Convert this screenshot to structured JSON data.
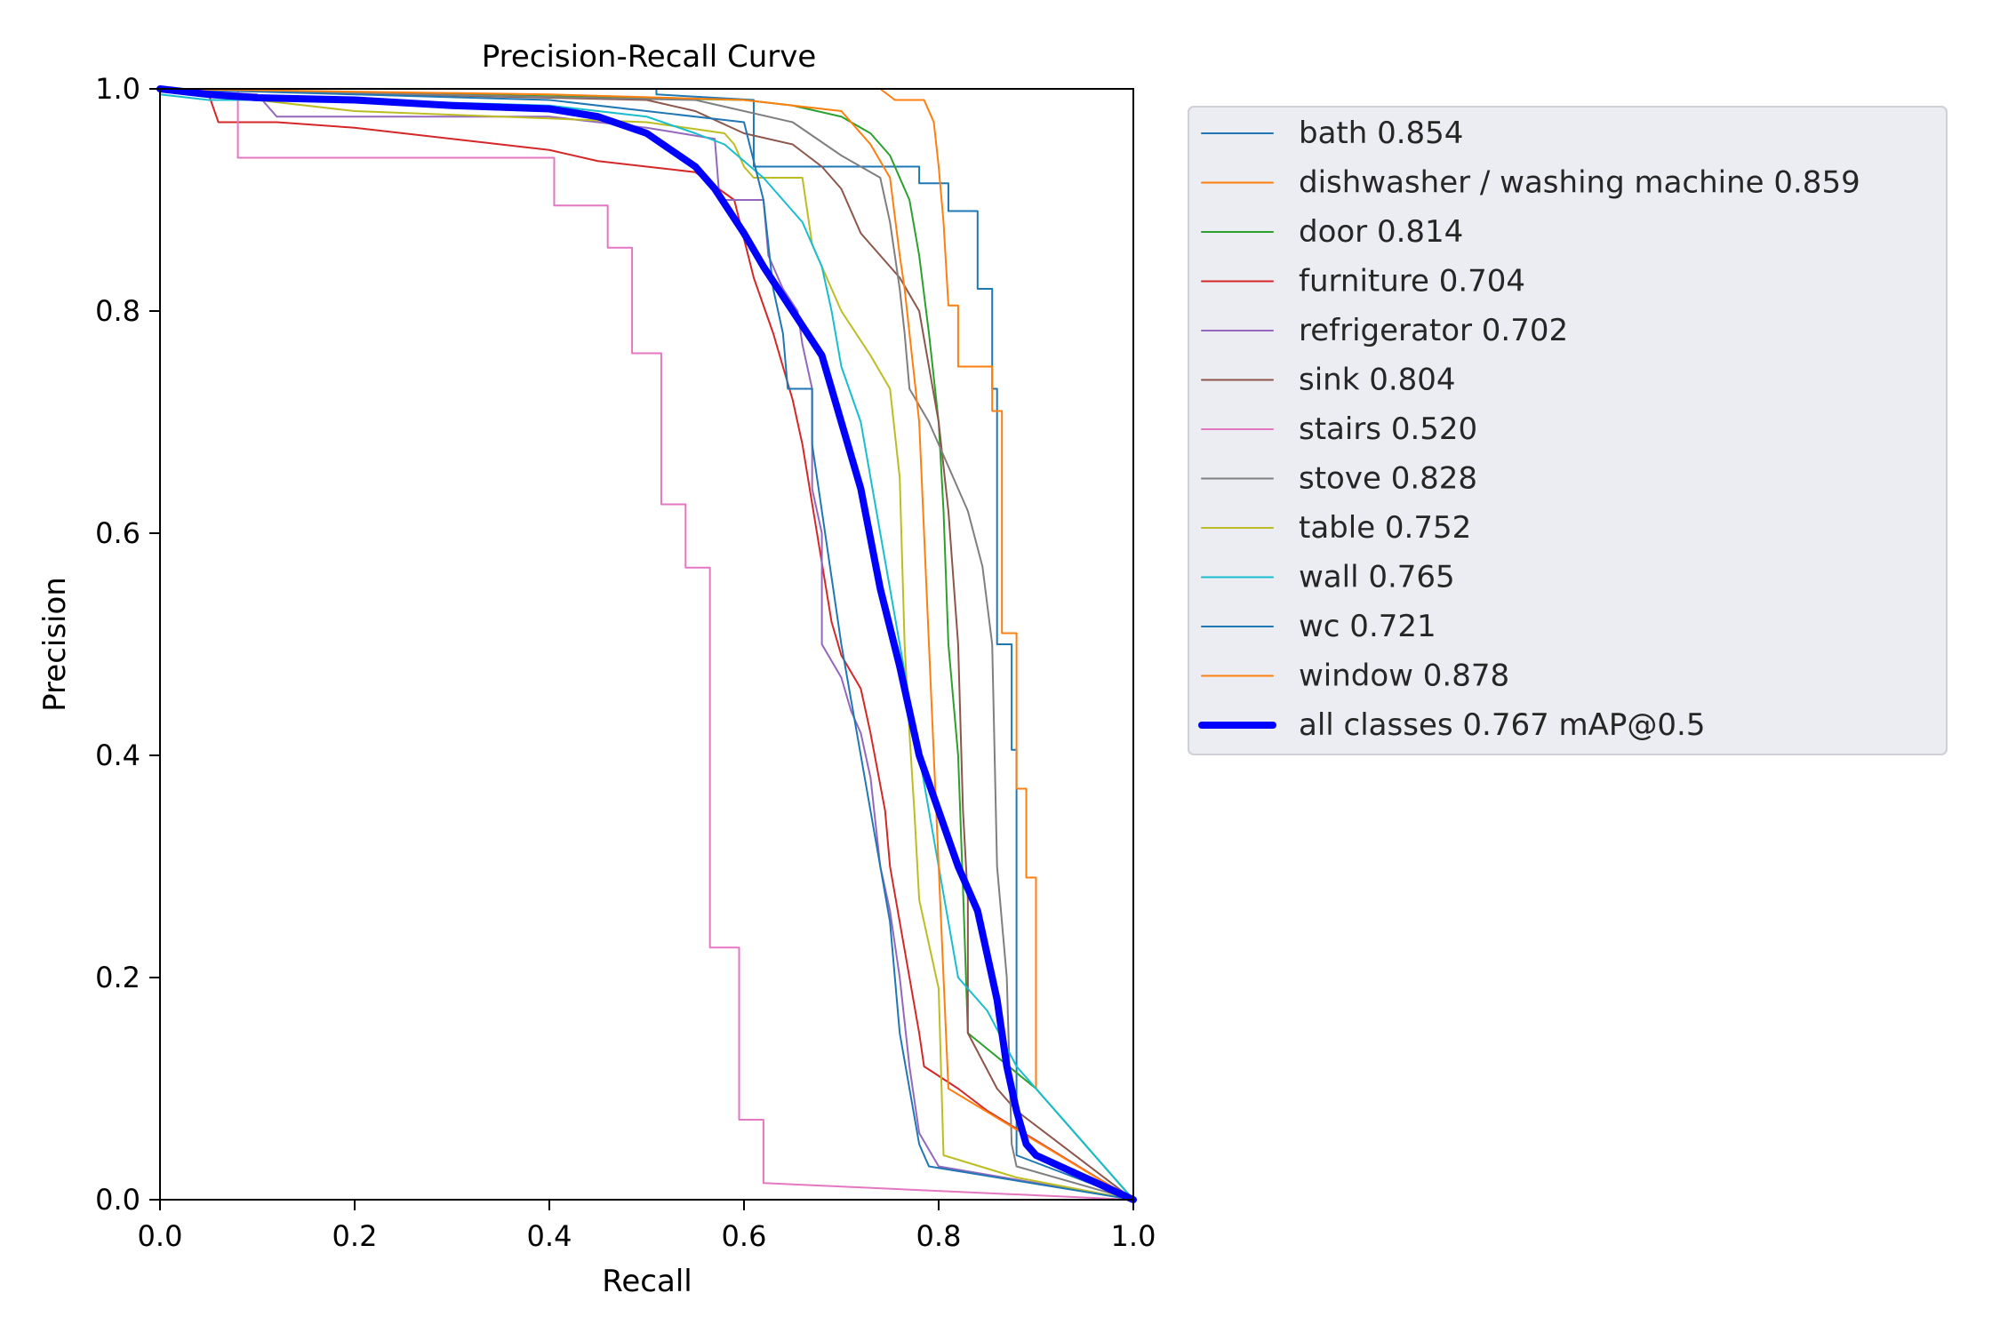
{
  "chart_data": {
    "type": "line",
    "title": "Precision-Recall Curve",
    "xlabel": "Recall",
    "ylabel": "Precision",
    "xlim": [
      0,
      1
    ],
    "ylim": [
      0,
      1
    ],
    "xticks": [
      "0.0",
      "0.2",
      "0.4",
      "0.6",
      "0.8",
      "1.0"
    ],
    "yticks": [
      "0.0",
      "0.2",
      "0.4",
      "0.6",
      "0.8",
      "1.0"
    ],
    "grid": false,
    "legend_position": "outside-right",
    "series": [
      {
        "name": "bath",
        "label": "bath 0.854",
        "color": "#1f77b4",
        "points": [
          [
            0,
            1
          ],
          [
            0.51,
            1
          ],
          [
            0.51,
            0.995
          ],
          [
            0.61,
            0.99
          ],
          [
            0.61,
            0.93
          ],
          [
            0.78,
            0.93
          ],
          [
            0.78,
            0.915
          ],
          [
            0.81,
            0.915
          ],
          [
            0.81,
            0.89
          ],
          [
            0.84,
            0.89
          ],
          [
            0.84,
            0.82
          ],
          [
            0.855,
            0.82
          ],
          [
            0.855,
            0.73
          ],
          [
            0.86,
            0.73
          ],
          [
            0.86,
            0.5
          ],
          [
            0.875,
            0.5
          ],
          [
            0.875,
            0.405
          ],
          [
            0.88,
            0.405
          ],
          [
            0.88,
            0.04
          ],
          [
            1,
            0
          ]
        ]
      },
      {
        "name": "dishwasher / washing machine",
        "label": "dishwasher / washing machine 0.859",
        "color": "#ff7f0e",
        "points": [
          [
            0,
            1
          ],
          [
            0.74,
            1
          ],
          [
            0.755,
            0.99
          ],
          [
            0.785,
            0.99
          ],
          [
            0.795,
            0.97
          ],
          [
            0.8,
            0.93
          ],
          [
            0.805,
            0.88
          ],
          [
            0.81,
            0.805
          ],
          [
            0.82,
            0.805
          ],
          [
            0.82,
            0.75
          ],
          [
            0.855,
            0.75
          ],
          [
            0.855,
            0.71
          ],
          [
            0.865,
            0.71
          ],
          [
            0.865,
            0.51
          ],
          [
            0.88,
            0.51
          ],
          [
            0.88,
            0.37
          ],
          [
            0.89,
            0.37
          ],
          [
            0.89,
            0.29
          ],
          [
            0.9,
            0.29
          ],
          [
            0.9,
            0.1
          ],
          [
            1,
            0
          ]
        ]
      },
      {
        "name": "door",
        "label": "door 0.814",
        "color": "#2ca02c",
        "points": [
          [
            0,
            1
          ],
          [
            0.3,
            0.995
          ],
          [
            0.6,
            0.99
          ],
          [
            0.65,
            0.985
          ],
          [
            0.7,
            0.975
          ],
          [
            0.73,
            0.96
          ],
          [
            0.75,
            0.94
          ],
          [
            0.77,
            0.9
          ],
          [
            0.78,
            0.85
          ],
          [
            0.79,
            0.78
          ],
          [
            0.8,
            0.7
          ],
          [
            0.805,
            0.62
          ],
          [
            0.81,
            0.5
          ],
          [
            0.82,
            0.4
          ],
          [
            0.825,
            0.28
          ],
          [
            0.83,
            0.15
          ],
          [
            0.9,
            0.1
          ],
          [
            1,
            0
          ]
        ]
      },
      {
        "name": "furniture",
        "label": "furniture 0.704",
        "color": "#d62728",
        "points": [
          [
            0,
            1
          ],
          [
            0.05,
            0.995
          ],
          [
            0.06,
            0.97
          ],
          [
            0.12,
            0.97
          ],
          [
            0.2,
            0.965
          ],
          [
            0.3,
            0.955
          ],
          [
            0.4,
            0.945
          ],
          [
            0.45,
            0.935
          ],
          [
            0.5,
            0.93
          ],
          [
            0.55,
            0.925
          ],
          [
            0.59,
            0.9
          ],
          [
            0.61,
            0.83
          ],
          [
            0.63,
            0.78
          ],
          [
            0.65,
            0.72
          ],
          [
            0.66,
            0.68
          ],
          [
            0.675,
            0.6
          ],
          [
            0.69,
            0.52
          ],
          [
            0.7,
            0.49
          ],
          [
            0.72,
            0.46
          ],
          [
            0.73,
            0.42
          ],
          [
            0.745,
            0.35
          ],
          [
            0.75,
            0.3
          ],
          [
            0.76,
            0.25
          ],
          [
            0.77,
            0.2
          ],
          [
            0.78,
            0.15
          ],
          [
            0.785,
            0.12
          ],
          [
            0.82,
            0.1
          ],
          [
            0.85,
            0.08
          ],
          [
            1,
            0
          ]
        ]
      },
      {
        "name": "refrigerator",
        "label": "refrigerator 0.702",
        "color": "#9467bd",
        "points": [
          [
            0,
            1
          ],
          [
            0.1,
            0.995
          ],
          [
            0.12,
            0.975
          ],
          [
            0.2,
            0.975
          ],
          [
            0.3,
            0.975
          ],
          [
            0.4,
            0.975
          ],
          [
            0.5,
            0.965
          ],
          [
            0.57,
            0.955
          ],
          [
            0.575,
            0.9
          ],
          [
            0.62,
            0.9
          ],
          [
            0.625,
            0.85
          ],
          [
            0.64,
            0.82
          ],
          [
            0.655,
            0.8
          ],
          [
            0.66,
            0.77
          ],
          [
            0.67,
            0.73
          ],
          [
            0.67,
            0.64
          ],
          [
            0.68,
            0.6
          ],
          [
            0.68,
            0.5
          ],
          [
            0.7,
            0.47
          ],
          [
            0.71,
            0.44
          ],
          [
            0.72,
            0.42
          ],
          [
            0.73,
            0.38
          ],
          [
            0.74,
            0.3
          ],
          [
            0.75,
            0.26
          ],
          [
            0.76,
            0.2
          ],
          [
            0.77,
            0.12
          ],
          [
            0.78,
            0.06
          ],
          [
            0.8,
            0.03
          ],
          [
            1,
            0
          ]
        ]
      },
      {
        "name": "sink",
        "label": "sink 0.804",
        "color": "#8c564b",
        "points": [
          [
            0,
            1
          ],
          [
            0.5,
            0.99
          ],
          [
            0.55,
            0.98
          ],
          [
            0.6,
            0.96
          ],
          [
            0.65,
            0.95
          ],
          [
            0.68,
            0.93
          ],
          [
            0.7,
            0.91
          ],
          [
            0.72,
            0.87
          ],
          [
            0.74,
            0.85
          ],
          [
            0.76,
            0.83
          ],
          [
            0.78,
            0.8
          ],
          [
            0.79,
            0.75
          ],
          [
            0.8,
            0.7
          ],
          [
            0.81,
            0.62
          ],
          [
            0.82,
            0.5
          ],
          [
            0.825,
            0.35
          ],
          [
            0.83,
            0.27
          ],
          [
            0.83,
            0.15
          ],
          [
            0.86,
            0.1
          ],
          [
            0.88,
            0.08
          ],
          [
            1,
            0
          ]
        ]
      },
      {
        "name": "stairs",
        "label": "stairs 0.520",
        "color": "#e377c2",
        "points": [
          [
            0,
            1
          ],
          [
            0.08,
            1
          ],
          [
            0.08,
            0.938
          ],
          [
            0.405,
            0.938
          ],
          [
            0.405,
            0.895
          ],
          [
            0.46,
            0.895
          ],
          [
            0.46,
            0.857
          ],
          [
            0.485,
            0.857
          ],
          [
            0.485,
            0.762
          ],
          [
            0.515,
            0.762
          ],
          [
            0.515,
            0.626
          ],
          [
            0.54,
            0.626
          ],
          [
            0.54,
            0.569
          ],
          [
            0.565,
            0.569
          ],
          [
            0.565,
            0.227
          ],
          [
            0.595,
            0.227
          ],
          [
            0.595,
            0.072
          ],
          [
            0.62,
            0.072
          ],
          [
            0.62,
            0.015
          ],
          [
            1,
            0
          ]
        ]
      },
      {
        "name": "stove",
        "label": "stove 0.828",
        "color": "#7f7f7f",
        "points": [
          [
            0,
            1
          ],
          [
            0.55,
            0.99
          ],
          [
            0.65,
            0.97
          ],
          [
            0.7,
            0.94
          ],
          [
            0.74,
            0.92
          ],
          [
            0.75,
            0.88
          ],
          [
            0.76,
            0.82
          ],
          [
            0.765,
            0.78
          ],
          [
            0.77,
            0.73
          ],
          [
            0.79,
            0.7
          ],
          [
            0.8,
            0.68
          ],
          [
            0.81,
            0.66
          ],
          [
            0.83,
            0.62
          ],
          [
            0.845,
            0.57
          ],
          [
            0.855,
            0.5
          ],
          [
            0.86,
            0.3
          ],
          [
            0.87,
            0.2
          ],
          [
            0.875,
            0.05
          ],
          [
            0.88,
            0.03
          ],
          [
            1,
            0
          ]
        ]
      },
      {
        "name": "table",
        "label": "table 0.752",
        "color": "#bcbd22",
        "points": [
          [
            0,
            1
          ],
          [
            0.2,
            0.98
          ],
          [
            0.5,
            0.97
          ],
          [
            0.58,
            0.96
          ],
          [
            0.59,
            0.95
          ],
          [
            0.6,
            0.93
          ],
          [
            0.61,
            0.92
          ],
          [
            0.66,
            0.92
          ],
          [
            0.67,
            0.86
          ],
          [
            0.7,
            0.8
          ],
          [
            0.73,
            0.76
          ],
          [
            0.75,
            0.73
          ],
          [
            0.76,
            0.65
          ],
          [
            0.765,
            0.5
          ],
          [
            0.77,
            0.42
          ],
          [
            0.775,
            0.35
          ],
          [
            0.78,
            0.27
          ],
          [
            0.8,
            0.19
          ],
          [
            0.805,
            0.04
          ],
          [
            0.88,
            0.02
          ],
          [
            1,
            0
          ]
        ]
      },
      {
        "name": "wall",
        "label": "wall 0.765",
        "color": "#17becf",
        "points": [
          [
            0,
            0.995
          ],
          [
            0.05,
            0.99
          ],
          [
            0.2,
            0.99
          ],
          [
            0.4,
            0.985
          ],
          [
            0.5,
            0.975
          ],
          [
            0.55,
            0.96
          ],
          [
            0.58,
            0.95
          ],
          [
            0.6,
            0.935
          ],
          [
            0.62,
            0.92
          ],
          [
            0.64,
            0.9
          ],
          [
            0.66,
            0.88
          ],
          [
            0.68,
            0.84
          ],
          [
            0.69,
            0.8
          ],
          [
            0.7,
            0.75
          ],
          [
            0.72,
            0.7
          ],
          [
            0.73,
            0.65
          ],
          [
            0.74,
            0.6
          ],
          [
            0.75,
            0.55
          ],
          [
            0.76,
            0.5
          ],
          [
            0.77,
            0.45
          ],
          [
            0.78,
            0.4
          ],
          [
            0.79,
            0.35
          ],
          [
            0.8,
            0.3
          ],
          [
            0.81,
            0.25
          ],
          [
            0.82,
            0.2
          ],
          [
            0.85,
            0.17
          ],
          [
            0.88,
            0.12
          ],
          [
            1,
            0
          ]
        ]
      },
      {
        "name": "wc",
        "label": "wc 0.721",
        "color": "#1f77b4",
        "points": [
          [
            0,
            1
          ],
          [
            0.4,
            0.99
          ],
          [
            0.6,
            0.97
          ],
          [
            0.62,
            0.9
          ],
          [
            0.63,
            0.82
          ],
          [
            0.64,
            0.78
          ],
          [
            0.645,
            0.73
          ],
          [
            0.67,
            0.73
          ],
          [
            0.67,
            0.68
          ],
          [
            0.7,
            0.5
          ],
          [
            0.72,
            0.4
          ],
          [
            0.73,
            0.35
          ],
          [
            0.74,
            0.3
          ],
          [
            0.75,
            0.25
          ],
          [
            0.76,
            0.15
          ],
          [
            0.77,
            0.1
          ],
          [
            0.78,
            0.05
          ],
          [
            0.79,
            0.03
          ],
          [
            1,
            0
          ]
        ]
      },
      {
        "name": "window",
        "label": "window 0.878",
        "color": "#ff7f0e",
        "points": [
          [
            0,
            1
          ],
          [
            0.4,
            0.995
          ],
          [
            0.6,
            0.99
          ],
          [
            0.7,
            0.98
          ],
          [
            0.73,
            0.95
          ],
          [
            0.75,
            0.92
          ],
          [
            0.76,
            0.85
          ],
          [
            0.765,
            0.82
          ],
          [
            0.77,
            0.78
          ],
          [
            0.78,
            0.7
          ],
          [
            0.785,
            0.6
          ],
          [
            0.79,
            0.5
          ],
          [
            0.795,
            0.4
          ],
          [
            0.8,
            0.3
          ],
          [
            0.805,
            0.2
          ],
          [
            0.81,
            0.1
          ],
          [
            1,
            0
          ]
        ]
      },
      {
        "name": "all classes",
        "label": "all classes 0.767 mAP@0.5",
        "color": "#0000ff",
        "bold": true,
        "points": [
          [
            0,
            1
          ],
          [
            0.05,
            0.995
          ],
          [
            0.1,
            0.992
          ],
          [
            0.2,
            0.99
          ],
          [
            0.3,
            0.985
          ],
          [
            0.4,
            0.982
          ],
          [
            0.45,
            0.975
          ],
          [
            0.5,
            0.96
          ],
          [
            0.55,
            0.93
          ],
          [
            0.57,
            0.91
          ],
          [
            0.6,
            0.87
          ],
          [
            0.62,
            0.84
          ],
          [
            0.65,
            0.8
          ],
          [
            0.68,
            0.76
          ],
          [
            0.7,
            0.7
          ],
          [
            0.72,
            0.64
          ],
          [
            0.74,
            0.55
          ],
          [
            0.76,
            0.48
          ],
          [
            0.78,
            0.4
          ],
          [
            0.8,
            0.35
          ],
          [
            0.82,
            0.3
          ],
          [
            0.84,
            0.26
          ],
          [
            0.86,
            0.18
          ],
          [
            0.87,
            0.12
          ],
          [
            0.88,
            0.08
          ],
          [
            0.89,
            0.05
          ],
          [
            0.9,
            0.04
          ],
          [
            1,
            0
          ]
        ]
      }
    ]
  }
}
